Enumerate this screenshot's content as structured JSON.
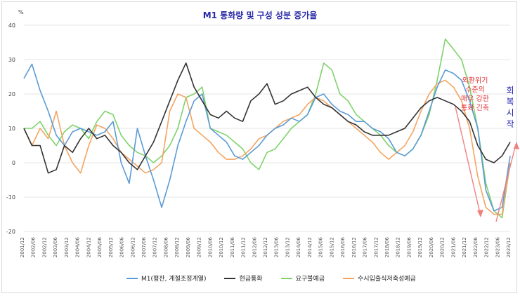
{
  "chart_data": {
    "type": "line",
    "title": "M1 통화량 및 구성 성분 증가율",
    "y_unit": "%",
    "ylim": [
      -20,
      40
    ],
    "y_ticks": [
      "40",
      "30",
      "20",
      "10",
      "0",
      "-10",
      "-20"
    ],
    "x_tick_labels": [
      "2001/12",
      "2002/06",
      "2002/12",
      "2003/06",
      "2003/12",
      "2004/06",
      "2004/12",
      "2005/06",
      "2005/12",
      "2006/06",
      "2006/12",
      "2007/06",
      "2007/12",
      "2008/06",
      "2008/12",
      "2009/06",
      "2009/12",
      "2010/06",
      "2010/12",
      "2011/06",
      "2011/12",
      "2012/06",
      "2012/12",
      "2013/06",
      "2013/12",
      "2014/06",
      "2014/12",
      "2015/06",
      "2015/12",
      "2016/06",
      "2016/12",
      "2017/06",
      "2017/12",
      "2018/06",
      "2018/12",
      "2019/06",
      "2019/12",
      "2020/06",
      "2020/12",
      "2021/06",
      "2021/12",
      "2022/06",
      "2022/12",
      "2023/06",
      "2023/12"
    ],
    "grid": "horizontal",
    "legend_position": "bottom",
    "series": [
      {
        "name": "M1(평잔, 계절조정계열)",
        "color": "#5b9bd5",
        "values": [
          24.5,
          28.7,
          21,
          15,
          8,
          5,
          9,
          10,
          9,
          8,
          9,
          12,
          0,
          -6,
          10,
          2,
          -5,
          -13,
          -5,
          5,
          12,
          18,
          20,
          10,
          8,
          6,
          2,
          1,
          3,
          5,
          8,
          10,
          11,
          13,
          12,
          14,
          19,
          20,
          17,
          15,
          14,
          12,
          12,
          10,
          9,
          7,
          3,
          2,
          4,
          8,
          15,
          22,
          27,
          26,
          24,
          18,
          10,
          -8,
          -14,
          -13,
          2
        ]
      },
      {
        "name": "현금통화",
        "color": "#333333",
        "values": [
          10,
          5,
          5,
          -3,
          -2,
          5,
          3,
          7,
          10,
          7,
          8,
          5,
          3,
          0,
          -2,
          2,
          6,
          12,
          18,
          24,
          29,
          22,
          18,
          14,
          13,
          15,
          13,
          12,
          18,
          20,
          23,
          17,
          18,
          20,
          21,
          22,
          19,
          17,
          16,
          14,
          12,
          11,
          9,
          8,
          8,
          8,
          9,
          10,
          13,
          16,
          18,
          19,
          18,
          17,
          15,
          12,
          5,
          1,
          0,
          2,
          6
        ]
      },
      {
        "name": "요구불예금",
        "color": "#7fd36b",
        "values": [
          10,
          10,
          12,
          8,
          5,
          9,
          11,
          10,
          7,
          12,
          15,
          14,
          8,
          5,
          3,
          2,
          0,
          2,
          5,
          10,
          19,
          20,
          22,
          10,
          9,
          8,
          6,
          4,
          0,
          -2,
          3,
          4,
          7,
          10,
          12,
          14,
          20,
          29,
          27,
          20,
          18,
          14,
          12,
          10,
          8,
          5,
          3,
          2,
          4,
          8,
          14,
          24,
          36,
          33,
          30,
          22,
          10,
          -6,
          -14,
          -16,
          0
        ]
      },
      {
        "name": "수시입출식저축성예금",
        "color": "#f4a460",
        "values": [
          10,
          5,
          10,
          7,
          15,
          5,
          0,
          -3,
          5,
          11,
          10,
          7,
          3,
          1,
          -1,
          -3,
          -2,
          0,
          15,
          20,
          19,
          10,
          8,
          6,
          3,
          1,
          1,
          2,
          4,
          7,
          8,
          10,
          12,
          13,
          14,
          17,
          19,
          18,
          16,
          14,
          12,
          10,
          8,
          6,
          3,
          1,
          3,
          5,
          9,
          15,
          20,
          23,
          24,
          22,
          18,
          10,
          -4,
          -13,
          -15,
          -15,
          0
        ]
      }
    ],
    "annotations": [
      {
        "text": "외환위기\n수준의\n매우 강한\n통화 긴축",
        "color": "#e03030"
      },
      {
        "text": "회\n복\n시\n작",
        "color": "#1a1ab0"
      }
    ]
  }
}
